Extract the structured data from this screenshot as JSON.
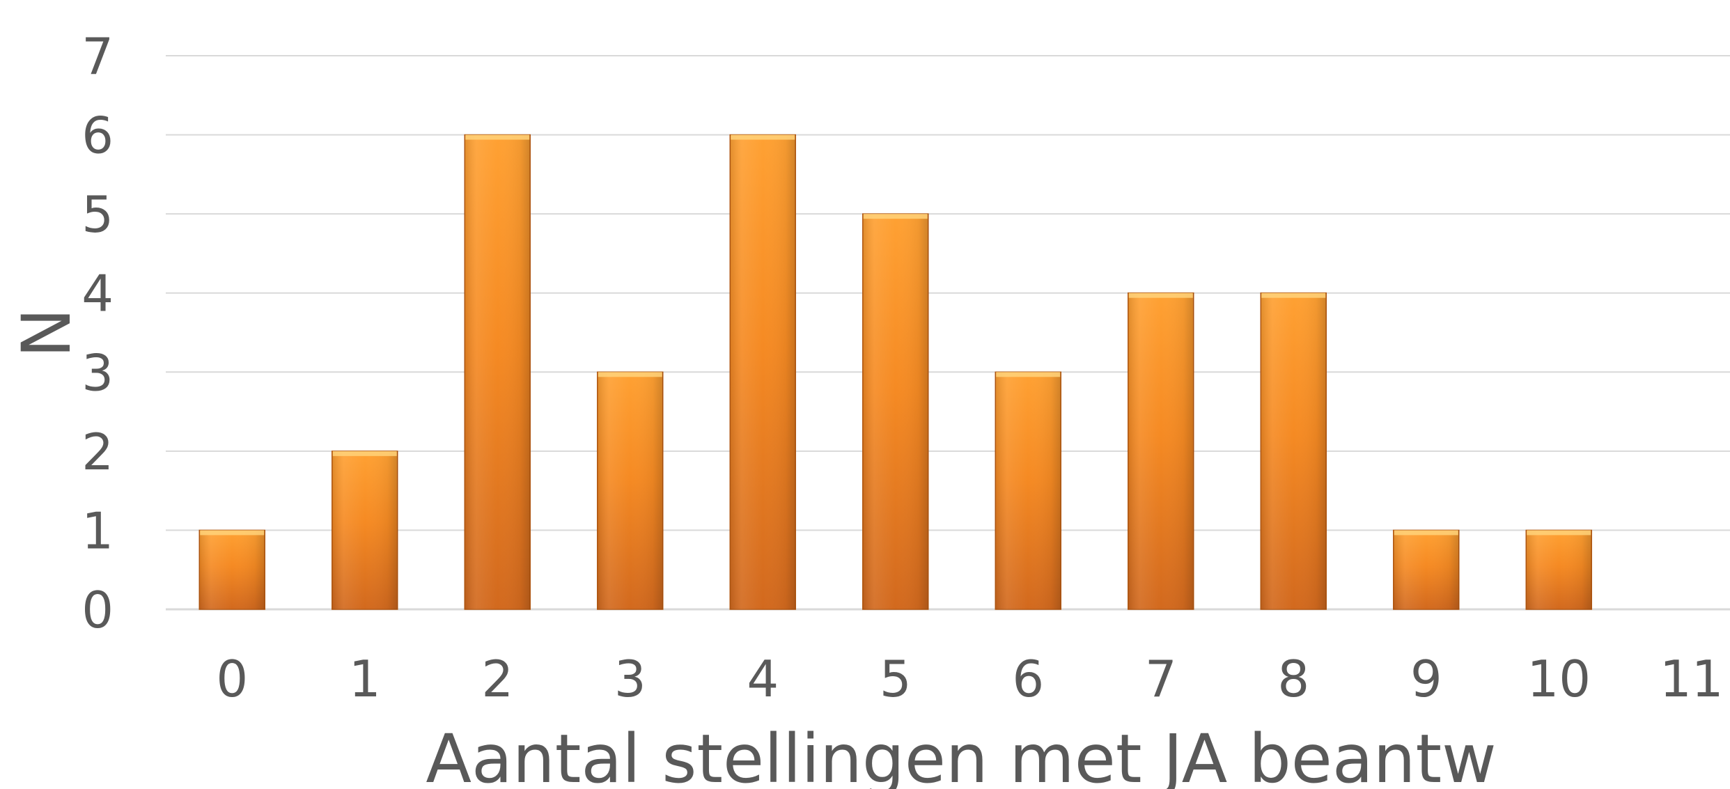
{
  "chart_data": {
    "type": "bar",
    "categories": [
      "0",
      "1",
      "2",
      "3",
      "4",
      "5",
      "6",
      "7",
      "8",
      "9",
      "10",
      "11"
    ],
    "series": [
      {
        "values": [
          1,
          2,
          6,
          3,
          6,
          5,
          3,
          4,
          4,
          1,
          1,
          0
        ]
      }
    ],
    "xlabel": "Aantal stellingen met JA beantw",
    "ylabel": "N",
    "ylim": [
      0,
      7
    ],
    "yticks": [
      "0",
      "1",
      "2",
      "3",
      "4",
      "5",
      "6",
      "7"
    ],
    "grid": true,
    "legend": "none",
    "colors": {
      "bar_top": "#ffa133",
      "bar_mid": "#f58a23",
      "bar_bottom": "#d2691e",
      "bar_edge": "#b85a12",
      "bar_cap": "#ffd27a",
      "grid": "#d9d9d9",
      "text": "#595959"
    }
  }
}
